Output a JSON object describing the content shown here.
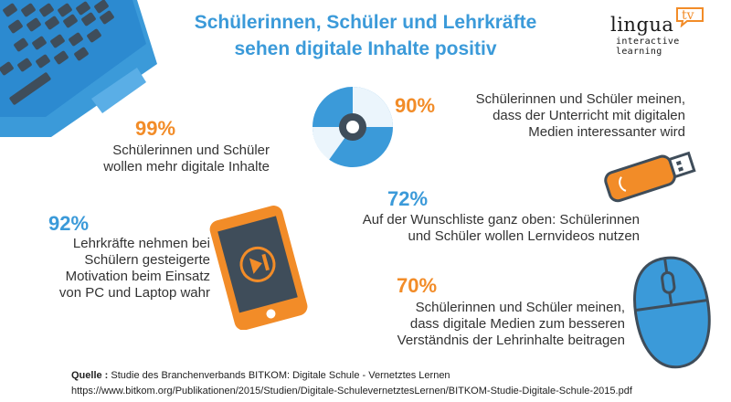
{
  "header": {
    "title_line1": "Schülerinnen, Schüler und Lehrkräfte",
    "title_line2": "sehen digitale Inhalte positiv"
  },
  "logo": {
    "word": "lingua",
    "tv": "tv",
    "subtitle": "interactive learning"
  },
  "facts": [
    {
      "percent": "99%",
      "color": "#f28c28",
      "lines": [
        "Schülerinnen und Schüler",
        "wollen mehr digitale Inhalte"
      ]
    },
    {
      "percent": "92%",
      "color": "#3b9ad9",
      "lines": [
        "Lehrkräfte nehmen bei",
        "Schülern gesteigerte",
        "Motivation beim Einsatz",
        "von PC und Laptop wahr"
      ]
    },
    {
      "percent": "90%",
      "color": "#f28c28",
      "lines": [
        "Schülerinnen und Schüler meinen,",
        "dass der Unterricht mit digitalen",
        "Medien interessanter wird"
      ]
    },
    {
      "percent": "72%",
      "color": "#3b9ad9",
      "lines": [
        "Auf der Wunschliste ganz oben: Schülerinnen",
        "und Schüler wollen Lernvideos nutzen"
      ]
    },
    {
      "percent": "70%",
      "color": "#f28c28",
      "lines": [
        "Schülerinnen und Schüler meinen,",
        "dass digitale Medien zum besseren",
        "Verständnis der Lehrinhalte beitragen"
      ]
    }
  ],
  "source": {
    "label": "Quelle :",
    "text": " Studie des Branchenverbands BITKOM: Digitale Schule - Vernetztes Lernen",
    "url": "https://www.bitkom.org/Publikationen/2015/Studien/Digitale-SchulevernetztesLernen/BITKOM-Studie-Digitale-Schule-2015.pdf"
  },
  "icons": [
    "laptop-icon",
    "cd-icon",
    "usb-stick-icon",
    "tablet-play-icon",
    "mouse-icon"
  ],
  "colors": {
    "blue": "#3b9ad9",
    "orange": "#f28c28",
    "dark": "#4a5866"
  }
}
